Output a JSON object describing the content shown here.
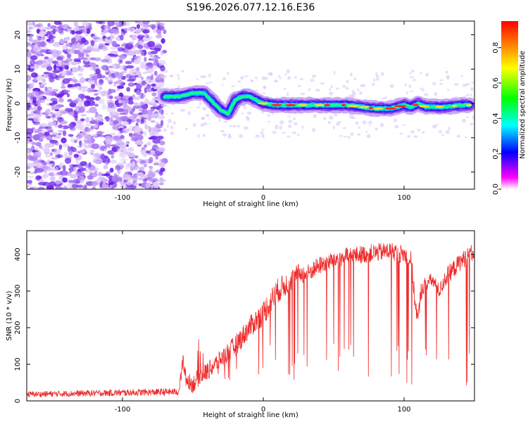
{
  "page_title": "S196.2026.077.12.16.E36",
  "chart_data": [
    {
      "type": "heatmap",
      "title": "S196.2026.077.12.16.E36",
      "xlabel": "Height of straight line (km)",
      "ylabel": "Frequency (Hz)",
      "xlim": [
        -168,
        150
      ],
      "ylim": [
        -25,
        24
      ],
      "xticks": [
        -100,
        0,
        100
      ],
      "yticks": [
        -20,
        -10,
        0,
        10,
        20
      ],
      "noise_region_end_km": -70,
      "ridge": {
        "description": "dominant frequency trace",
        "x": [
          -70,
          -60,
          -50,
          -42,
          -35,
          -30,
          -25,
          -20,
          -15,
          -10,
          -5,
          0,
          10,
          20,
          40,
          60,
          70,
          80,
          90,
          100,
          105,
          110,
          115,
          120,
          130,
          140,
          147
        ],
        "y": [
          2,
          2,
          3,
          3,
          0,
          -2,
          -3,
          1,
          2,
          2,
          1,
          0,
          -0.5,
          -0.5,
          -0.5,
          -0.5,
          -1,
          -1.5,
          -1.5,
          -0.5,
          -1,
          0,
          -1,
          -1,
          -1,
          -0.5,
          -0.5
        ]
      },
      "colorbar": {
        "label": "Normalized spectral amplitude",
        "range": [
          0.0,
          0.95
        ],
        "ticks": [
          0.0,
          0.2,
          0.4,
          0.6,
          0.8
        ],
        "tick_labels": [
          "0.0",
          "0.2",
          "0.4",
          "0.6",
          "0.8"
        ],
        "colors": [
          "#ffffff",
          "#ff00ff",
          "#0000ff",
          "#00ffff",
          "#00ff00",
          "#ffff00",
          "#ff0000"
        ]
      }
    },
    {
      "type": "line",
      "xlabel": "Height of straight line (km)",
      "ylabel": "SNR (10 * v/v)",
      "xlim": [
        -168,
        150
      ],
      "ylim": [
        0,
        465
      ],
      "xticks": [
        -100,
        0,
        100
      ],
      "yticks": [
        0,
        100,
        200,
        300,
        400
      ],
      "series": [
        {
          "name": "SNR",
          "color": "#ee2a2a",
          "envelope": {
            "x": [
              -168,
              -60,
              -57,
              -55,
              -50,
              -45,
              -40,
              -30,
              -20,
              -10,
              0,
              10,
              20,
              25,
              30,
              40,
              50,
              60,
              70,
              80,
              90,
              100,
              105,
              108,
              110,
              112,
              115,
              120,
              125,
              130,
              135,
              140,
              145,
              150
            ],
            "y": [
              18,
              25,
              110,
              60,
              45,
              70,
              80,
              115,
              150,
              200,
              240,
              300,
              330,
              350,
              345,
              370,
              385,
              395,
              400,
              405,
              410,
              400,
              385,
              260,
              220,
              300,
              320,
              330,
              300,
              340,
              360,
              380,
              395,
              410
            ],
            "spread": [
              8,
              10,
              25,
              20,
              25,
              25,
              25,
              25,
              30,
              30,
              35,
              35,
              30,
              25,
              25,
              25,
              25,
              25,
              25,
              25,
              25,
              25,
              25,
              25,
              25,
              25,
              20,
              20,
              20,
              25,
              25,
              25,
              25,
              25
            ]
          },
          "dropouts": {
            "x_range": [
              -55,
              147
            ],
            "floor_values": [
              45,
              60,
              75,
              90,
              100,
              110,
              120,
              130
            ]
          }
        }
      ]
    }
  ]
}
